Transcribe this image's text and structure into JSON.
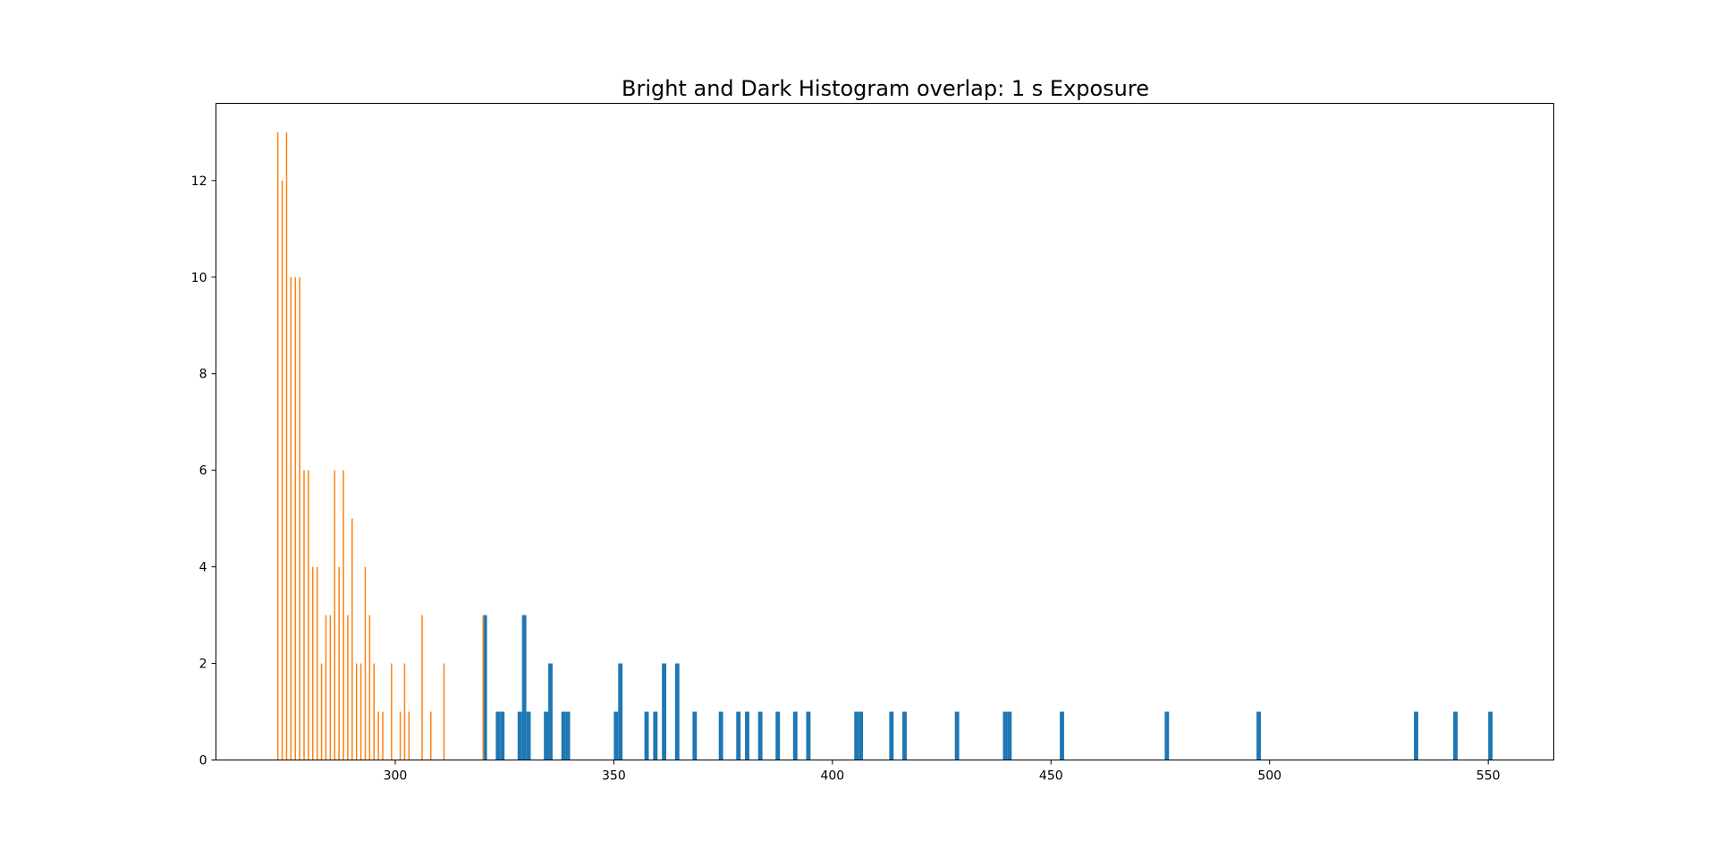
{
  "chart_data": {
    "type": "bar",
    "title": "Bright and Dark Histogram overlap: 1 s Exposure",
    "xlabel": "",
    "ylabel": "",
    "xlim": [
      259,
      565
    ],
    "ylim": [
      0,
      13.6
    ],
    "xticks": [
      300,
      350,
      400,
      450,
      500,
      550
    ],
    "yticks": [
      0,
      2,
      4,
      6,
      8,
      10,
      12
    ],
    "grid": false,
    "colors": {
      "blue": "#1f77b4",
      "orange": "#ff7f0e"
    },
    "series": [
      {
        "bin_width": 1.0,
        "bars": [
          {
            "x": 320,
            "y": 3
          },
          {
            "x": 323,
            "y": 1
          },
          {
            "x": 324,
            "y": 1
          },
          {
            "x": 328,
            "y": 1
          },
          {
            "x": 329,
            "y": 3
          },
          {
            "x": 330,
            "y": 1
          },
          {
            "x": 334,
            "y": 1
          },
          {
            "x": 335,
            "y": 2
          },
          {
            "x": 338,
            "y": 1
          },
          {
            "x": 339,
            "y": 1
          },
          {
            "x": 350,
            "y": 1
          },
          {
            "x": 351,
            "y": 2
          },
          {
            "x": 357,
            "y": 1
          },
          {
            "x": 359,
            "y": 1
          },
          {
            "x": 361,
            "y": 2
          },
          {
            "x": 364,
            "y": 2
          },
          {
            "x": 368,
            "y": 1
          },
          {
            "x": 374,
            "y": 1
          },
          {
            "x": 378,
            "y": 1
          },
          {
            "x": 380,
            "y": 1
          },
          {
            "x": 383,
            "y": 1
          },
          {
            "x": 387,
            "y": 1
          },
          {
            "x": 391,
            "y": 1
          },
          {
            "x": 394,
            "y": 1
          },
          {
            "x": 405,
            "y": 1
          },
          {
            "x": 406,
            "y": 1
          },
          {
            "x": 413,
            "y": 1
          },
          {
            "x": 416,
            "y": 1
          },
          {
            "x": 428,
            "y": 1
          },
          {
            "x": 439,
            "y": 1
          },
          {
            "x": 440,
            "y": 1
          },
          {
            "x": 452,
            "y": 1
          },
          {
            "x": 476,
            "y": 1
          },
          {
            "x": 497,
            "y": 1
          },
          {
            "x": 533,
            "y": 1
          },
          {
            "x": 542,
            "y": 1
          },
          {
            "x": 550,
            "y": 1
          }
        ]
      },
      {
        "bin_width": 0.3,
        "bars": [
          {
            "x": 273,
            "y": 13
          },
          {
            "x": 274,
            "y": 12
          },
          {
            "x": 275,
            "y": 13
          },
          {
            "x": 276,
            "y": 10
          },
          {
            "x": 277,
            "y": 10
          },
          {
            "x": 278,
            "y": 10
          },
          {
            "x": 279,
            "y": 6
          },
          {
            "x": 280,
            "y": 6
          },
          {
            "x": 281,
            "y": 4
          },
          {
            "x": 282,
            "y": 4
          },
          {
            "x": 283,
            "y": 2
          },
          {
            "x": 284,
            "y": 3
          },
          {
            "x": 285,
            "y": 3
          },
          {
            "x": 286,
            "y": 6
          },
          {
            "x": 287,
            "y": 4
          },
          {
            "x": 288,
            "y": 6
          },
          {
            "x": 289,
            "y": 3
          },
          {
            "x": 290,
            "y": 5
          },
          {
            "x": 291,
            "y": 2
          },
          {
            "x": 292,
            "y": 2
          },
          {
            "x": 293,
            "y": 4
          },
          {
            "x": 294,
            "y": 3
          },
          {
            "x": 295,
            "y": 2
          },
          {
            "x": 296,
            "y": 1
          },
          {
            "x": 297,
            "y": 1
          },
          {
            "x": 299,
            "y": 2
          },
          {
            "x": 301,
            "y": 1
          },
          {
            "x": 302,
            "y": 2
          },
          {
            "x": 303,
            "y": 1
          },
          {
            "x": 306,
            "y": 3
          },
          {
            "x": 308,
            "y": 1
          },
          {
            "x": 311,
            "y": 2
          },
          {
            "x": 320,
            "y": 3
          }
        ]
      }
    ]
  }
}
